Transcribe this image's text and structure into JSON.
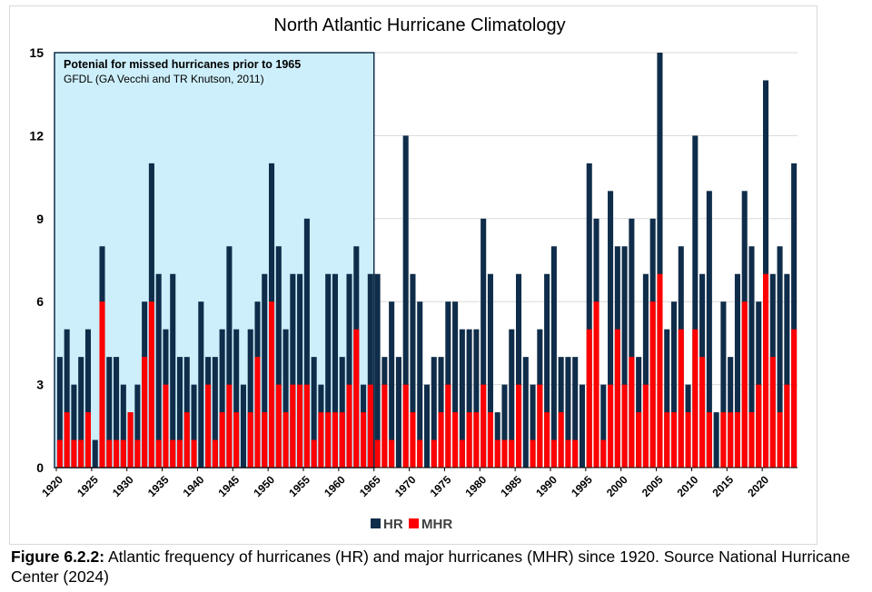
{
  "caption": {
    "label": "Figure 6.2.2:",
    "text": " Atlantic frequency of hurricanes (HR) and major hurricanes (MHR) since 1920.  Source National Hurricane Center (2024)"
  },
  "chart_data": {
    "type": "bar",
    "title": "North Atlantic Hurricane Climatology",
    "xlabel": "",
    "ylabel": "",
    "ylim": [
      0,
      15
    ],
    "yticks": [
      0,
      3,
      6,
      9,
      12,
      15
    ],
    "xtick_labels": [
      "1920",
      "1925",
      "1930",
      "1935",
      "1940",
      "1945",
      "1950",
      "1955",
      "1960",
      "1965",
      "1970",
      "1975",
      "1980",
      "1985",
      "1990",
      "1995",
      "2000",
      "2005",
      "2010",
      "2015",
      "2020"
    ],
    "x": [
      1920,
      1921,
      1922,
      1923,
      1924,
      1925,
      1926,
      1927,
      1928,
      1929,
      1930,
      1931,
      1932,
      1933,
      1934,
      1935,
      1936,
      1937,
      1938,
      1939,
      1940,
      1941,
      1942,
      1943,
      1944,
      1945,
      1946,
      1947,
      1948,
      1949,
      1950,
      1951,
      1952,
      1953,
      1954,
      1955,
      1956,
      1957,
      1958,
      1959,
      1960,
      1961,
      1962,
      1963,
      1964,
      1965,
      1966,
      1967,
      1968,
      1969,
      1970,
      1971,
      1972,
      1973,
      1974,
      1975,
      1976,
      1977,
      1978,
      1979,
      1980,
      1981,
      1982,
      1983,
      1984,
      1985,
      1986,
      1987,
      1988,
      1989,
      1990,
      1991,
      1992,
      1993,
      1994,
      1995,
      1996,
      1997,
      1998,
      1999,
      2000,
      2001,
      2002,
      2003,
      2004,
      2005,
      2006,
      2007,
      2008,
      2009,
      2010,
      2011,
      2012,
      2013,
      2014,
      2015,
      2016,
      2017,
      2018,
      2019,
      2020,
      2021,
      2022,
      2023,
      2024
    ],
    "series": [
      {
        "name": "HR",
        "color": "#0f2d4a",
        "values": [
          4,
          5,
          3,
          4,
          5,
          1,
          8,
          4,
          4,
          3,
          2,
          3,
          6,
          11,
          7,
          5,
          7,
          4,
          4,
          3,
          6,
          4,
          4,
          5,
          8,
          5,
          3,
          5,
          6,
          7,
          11,
          8,
          5,
          7,
          7,
          9,
          4,
          3,
          7,
          7,
          4,
          7,
          8,
          3,
          7,
          7,
          4,
          6,
          4,
          12,
          7,
          6,
          3,
          4,
          4,
          6,
          6,
          5,
          5,
          5,
          9,
          7,
          2,
          3,
          5,
          7,
          4,
          3,
          5,
          7,
          8,
          4,
          4,
          4,
          3,
          11,
          9,
          3,
          10,
          8,
          8,
          9,
          4,
          7,
          9,
          15,
          5,
          6,
          8,
          3,
          12,
          7,
          10,
          2,
          6,
          4,
          7,
          10,
          8,
          6,
          14,
          7,
          8,
          7,
          11
        ]
      },
      {
        "name": "MHR",
        "color": "#ff0000",
        "values": [
          1,
          2,
          1,
          1,
          2,
          0,
          6,
          1,
          1,
          1,
          2,
          1,
          4,
          6,
          1,
          3,
          1,
          1,
          2,
          1,
          0,
          3,
          1,
          2,
          3,
          2,
          0,
          2,
          4,
          2,
          6,
          3,
          2,
          3,
          3,
          3,
          1,
          2,
          2,
          2,
          2,
          3,
          5,
          2,
          3,
          1,
          3,
          1,
          0,
          3,
          2,
          1,
          0,
          1,
          2,
          3,
          2,
          1,
          2,
          2,
          3,
          2,
          1,
          1,
          1,
          3,
          0,
          1,
          3,
          2,
          1,
          2,
          1,
          1,
          0,
          5,
          6,
          1,
          3,
          5,
          3,
          4,
          2,
          3,
          6,
          7,
          2,
          2,
          5,
          2,
          5,
          4,
          2,
          0,
          2,
          2,
          2,
          6,
          2,
          3,
          7,
          4,
          2,
          3,
          5
        ]
      }
    ],
    "legend": {
      "position": "bottom-center",
      "entries": [
        "HR",
        "MHR"
      ]
    },
    "annotation": {
      "region_end_year": 1965,
      "region_color": "#cdeffb",
      "title": "Potenial for missed hurricanes prior to 1965",
      "subtitle": "GFDL (GA Vecchi and TR Knutson, 2011)"
    }
  }
}
